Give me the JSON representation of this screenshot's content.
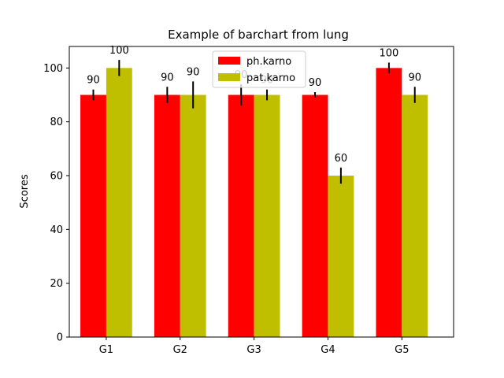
{
  "chart_data": {
    "type": "bar",
    "title": "Example of barchart from lung",
    "xlabel": "",
    "ylabel": "Scores",
    "categories": [
      "G1",
      "G2",
      "G3",
      "G4",
      "G5"
    ],
    "ylim": [
      0,
      108
    ],
    "yticks": [
      0,
      20,
      40,
      60,
      80,
      100
    ],
    "grid": false,
    "legend_position": "top-center",
    "series": [
      {
        "name": "ph.karno",
        "color": "#ff0000",
        "values": [
          90,
          90,
          90,
          90,
          100
        ],
        "errors": [
          2,
          3,
          4,
          1,
          2
        ],
        "labels": [
          "90",
          "90",
          "90",
          "90",
          "100"
        ]
      },
      {
        "name": "pat.karno",
        "color": "#bfbf00",
        "values": [
          100,
          90,
          90,
          60,
          90
        ],
        "errors": [
          3,
          5,
          2,
          3,
          3
        ],
        "labels": [
          "100",
          "90",
          "90",
          "60",
          "90"
        ]
      }
    ]
  }
}
